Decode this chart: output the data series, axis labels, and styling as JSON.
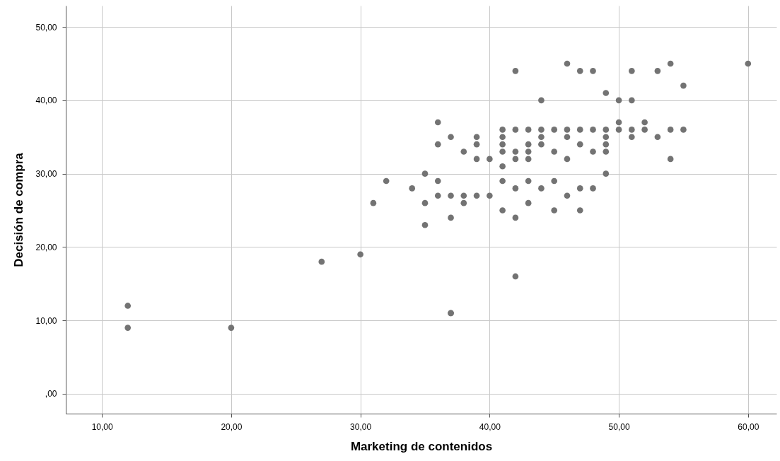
{
  "chart_data": {
    "type": "scatter",
    "xlabel": "Marketing de contenidos",
    "ylabel": "Decisión de compra",
    "series": [
      {
        "color": "#737373",
        "x": [
          12,
          12,
          20,
          27,
          30,
          31,
          32,
          34,
          35,
          35,
          35,
          36,
          36,
          36,
          36,
          37,
          37,
          37,
          37,
          38,
          38,
          38,
          39,
          39,
          39,
          39,
          40,
          40,
          41,
          41,
          41,
          41,
          41,
          41,
          41,
          42,
          42,
          42,
          42,
          42,
          42,
          43,
          43,
          43,
          43,
          43,
          43,
          44,
          44,
          44,
          44,
          44,
          45,
          45,
          45,
          45,
          46,
          46,
          46,
          46,
          46,
          47,
          47,
          47,
          47,
          47,
          48,
          48,
          48,
          48,
          49,
          49,
          49,
          49,
          49,
          49,
          50,
          50,
          50,
          51,
          51,
          51,
          51,
          52,
          52,
          53,
          53,
          54,
          54,
          54,
          55,
          55,
          60,
          37,
          42
        ],
        "values": [
          12,
          9,
          9,
          18,
          19,
          26,
          29,
          28,
          30,
          26,
          23,
          37,
          34,
          29,
          27,
          35,
          27,
          24,
          11,
          33,
          27,
          26,
          35,
          34,
          32,
          27,
          32,
          27,
          36,
          35,
          34,
          33,
          31,
          29,
          25,
          36,
          33,
          32,
          28,
          24,
          16,
          36,
          34,
          33,
          32,
          29,
          26,
          40,
          36,
          35,
          34,
          28,
          36,
          33,
          29,
          25,
          45,
          36,
          35,
          32,
          27,
          44,
          36,
          34,
          28,
          25,
          44,
          36,
          33,
          28,
          41,
          36,
          35,
          34,
          33,
          30,
          40,
          37,
          36,
          44,
          40,
          36,
          35,
          37,
          36,
          44,
          35,
          45,
          36,
          32,
          42,
          36,
          45,
          11,
          44
        ]
      }
    ],
    "xlim": [
      7.2,
      62.2
    ],
    "ylim": [
      -2.7,
      52.9
    ],
    "xticks": [
      {
        "value": 10,
        "label": "10,00"
      },
      {
        "value": 20,
        "label": "20,00"
      },
      {
        "value": 30,
        "label": "30,00"
      },
      {
        "value": 40,
        "label": "40,00"
      },
      {
        "value": 50,
        "label": "50,00"
      },
      {
        "value": 60,
        "label": "60,00"
      }
    ],
    "yticks": [
      {
        "value": 0,
        "label": ",00"
      },
      {
        "value": 10,
        "label": "10,00"
      },
      {
        "value": 20,
        "label": "20,00"
      },
      {
        "value": 30,
        "label": "30,00"
      },
      {
        "value": 40,
        "label": "40,00"
      },
      {
        "value": 50,
        "label": "50,00"
      }
    ],
    "grid": true,
    "marker": "circle"
  }
}
